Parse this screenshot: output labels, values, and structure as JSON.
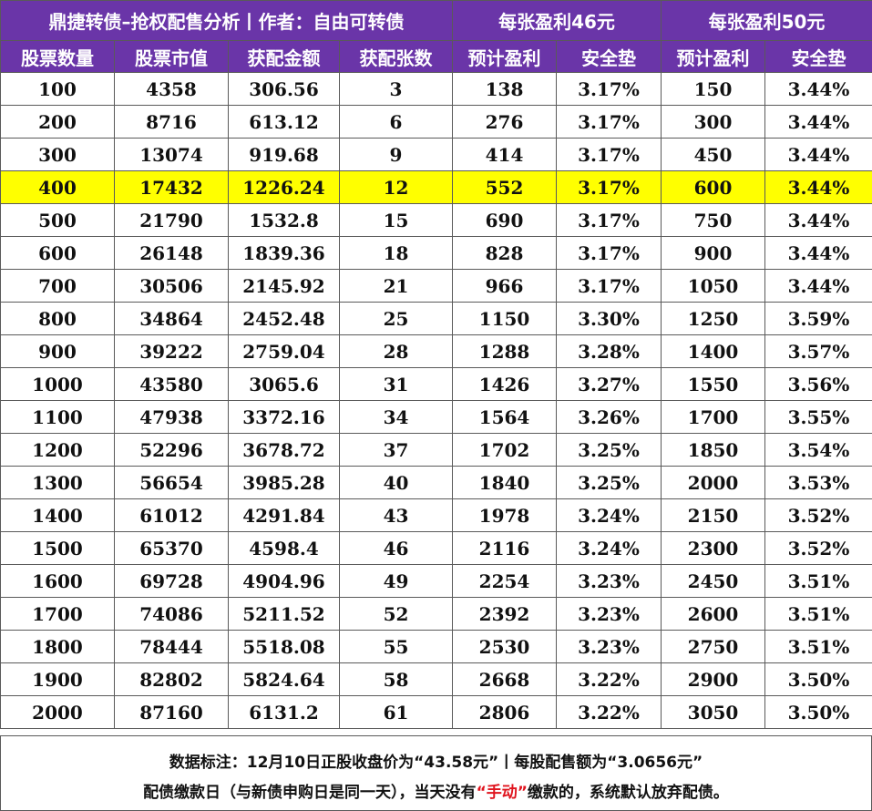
{
  "header": {
    "title": "鼎捷转债–抢权配售分析丨作者：自由可转债",
    "group_46": "每张盈利46元",
    "group_50": "每张盈利50元"
  },
  "columns": [
    "股票数量",
    "股票市值",
    "获配金额",
    "获配张数",
    "预计盈利",
    "安全垫",
    "预计盈利",
    "安全垫"
  ],
  "rows": [
    [
      "100",
      "4358",
      "306.56",
      "3",
      "138",
      "3.17%",
      "150",
      "3.44%"
    ],
    [
      "200",
      "8716",
      "613.12",
      "6",
      "276",
      "3.17%",
      "300",
      "3.44%"
    ],
    [
      "300",
      "13074",
      "919.68",
      "9",
      "414",
      "3.17%",
      "450",
      "3.44%"
    ],
    [
      "400",
      "17432",
      "1226.24",
      "12",
      "552",
      "3.17%",
      "600",
      "3.44%"
    ],
    [
      "500",
      "21790",
      "1532.8",
      "15",
      "690",
      "3.17%",
      "750",
      "3.44%"
    ],
    [
      "600",
      "26148",
      "1839.36",
      "18",
      "828",
      "3.17%",
      "900",
      "3.44%"
    ],
    [
      "700",
      "30506",
      "2145.92",
      "21",
      "966",
      "3.17%",
      "1050",
      "3.44%"
    ],
    [
      "800",
      "34864",
      "2452.48",
      "25",
      "1150",
      "3.30%",
      "1250",
      "3.59%"
    ],
    [
      "900",
      "39222",
      "2759.04",
      "28",
      "1288",
      "3.28%",
      "1400",
      "3.57%"
    ],
    [
      "1000",
      "43580",
      "3065.6",
      "31",
      "1426",
      "3.27%",
      "1550",
      "3.56%"
    ],
    [
      "1100",
      "47938",
      "3372.16",
      "34",
      "1564",
      "3.26%",
      "1700",
      "3.55%"
    ],
    [
      "1200",
      "52296",
      "3678.72",
      "37",
      "1702",
      "3.25%",
      "1850",
      "3.54%"
    ],
    [
      "1300",
      "56654",
      "3985.28",
      "40",
      "1840",
      "3.25%",
      "2000",
      "3.53%"
    ],
    [
      "1400",
      "61012",
      "4291.84",
      "43",
      "1978",
      "3.24%",
      "2150",
      "3.52%"
    ],
    [
      "1500",
      "65370",
      "4598.4",
      "46",
      "2116",
      "3.24%",
      "2300",
      "3.52%"
    ],
    [
      "1600",
      "69728",
      "4904.96",
      "49",
      "2254",
      "3.23%",
      "2450",
      "3.51%"
    ],
    [
      "1700",
      "74086",
      "5211.52",
      "52",
      "2392",
      "3.23%",
      "2600",
      "3.51%"
    ],
    [
      "1800",
      "78444",
      "5518.08",
      "55",
      "2530",
      "3.23%",
      "2750",
      "3.51%"
    ],
    [
      "1900",
      "82802",
      "5824.64",
      "58",
      "2668",
      "3.22%",
      "2900",
      "3.50%"
    ],
    [
      "2000",
      "87160",
      "6131.2",
      "61",
      "2806",
      "3.22%",
      "3050",
      "3.50%"
    ]
  ],
  "highlight_row": 3,
  "highlight_color": "#ffff00",
  "header_color": "#6a35a8",
  "footer": {
    "line1": "数据标注：12月10日正股收盘价为“43.58元”丨每股配售额为“3.0656元”",
    "line2_pre": "配债缴款日（与新债申购日是同一天），当天没有",
    "line2_red": "“手动”",
    "line2_post": "缴款的，系统默认放弃配债。"
  }
}
